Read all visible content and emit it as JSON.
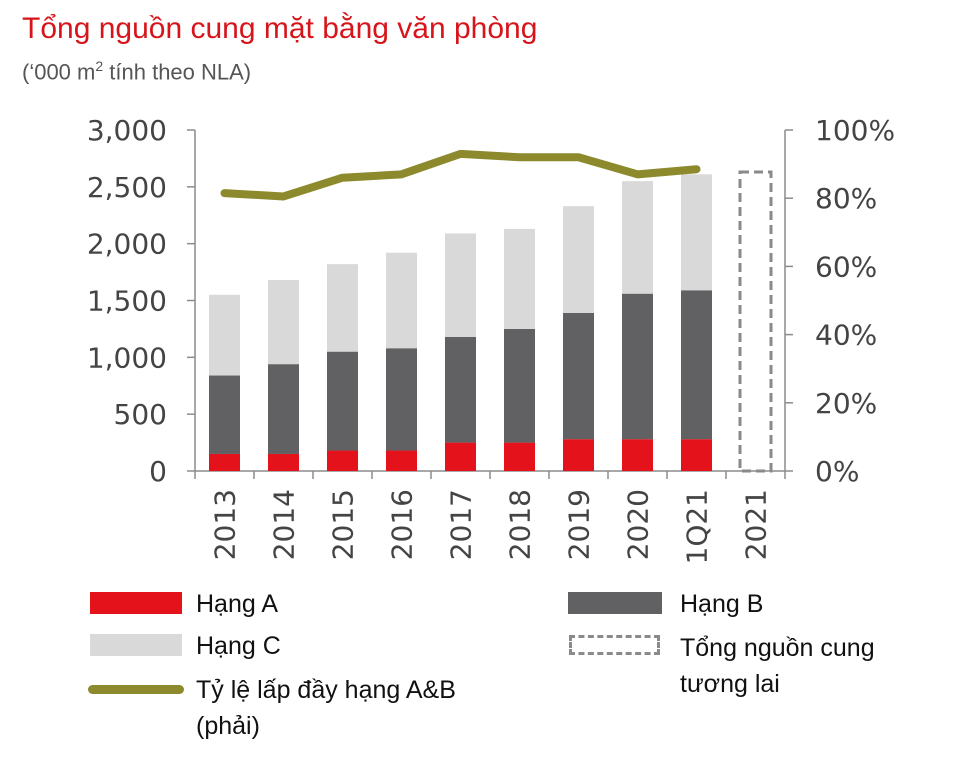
{
  "title": "Tổng nguồn cung mặt bằng văn phòng",
  "subtitle": {
    "prefix": "(‘000 m",
    "sup": "2",
    "suffix": " tính theo NLA)"
  },
  "colors": {
    "hang_a": "#e3121b",
    "hang_b": "#616062",
    "hang_c": "#d9d9d9",
    "occupancy": "#8c8a2c",
    "future": "#8a8a8a",
    "title": "#d7141a"
  },
  "chart_data": {
    "type": "bar",
    "stacked": true,
    "categories": [
      "2013",
      "2014",
      "2015",
      "2016",
      "2017",
      "2018",
      "2019",
      "2020",
      "1Q21",
      "2021"
    ],
    "series": [
      {
        "name": "Hạng A",
        "values": [
          150,
          150,
          180,
          180,
          250,
          250,
          280,
          280,
          280,
          null
        ]
      },
      {
        "name": "Hạng B",
        "values": [
          690,
          790,
          870,
          900,
          930,
          1000,
          1110,
          1280,
          1310,
          null
        ]
      },
      {
        "name": "Hạng C",
        "values": [
          710,
          740,
          770,
          840,
          910,
          880,
          940,
          990,
          1020,
          null
        ]
      }
    ],
    "future_supply": {
      "name": "Tổng nguồn cung tương lai",
      "category": "2021",
      "value": 2630
    },
    "line_series": {
      "name": "Tỷ lệ lấp đầy hạng A&B (phải)",
      "axis": "right",
      "values": [
        81.5,
        80.5,
        86,
        87,
        93,
        92,
        92,
        87,
        88.5,
        null
      ]
    },
    "y_left": {
      "min": 0,
      "max": 3000,
      "ticks": [
        "0",
        "500",
        "1,000",
        "1,500",
        "2,000",
        "2,500",
        "3,000"
      ]
    },
    "y_right": {
      "min": 0,
      "max": 100,
      "ticks": [
        "0%",
        "20%",
        "40%",
        "60%",
        "80%",
        "100%"
      ]
    },
    "grid": false,
    "legend_position": "bottom"
  },
  "legend": {
    "hang_a": "Hạng A",
    "hang_b": "Hạng B",
    "hang_c": "Hạng C",
    "future_1": "Tổng nguồn cung",
    "future_2": "tương lai",
    "line_1": "Tỷ lệ lấp đầy hạng A&B",
    "line_2": "(phải)"
  }
}
